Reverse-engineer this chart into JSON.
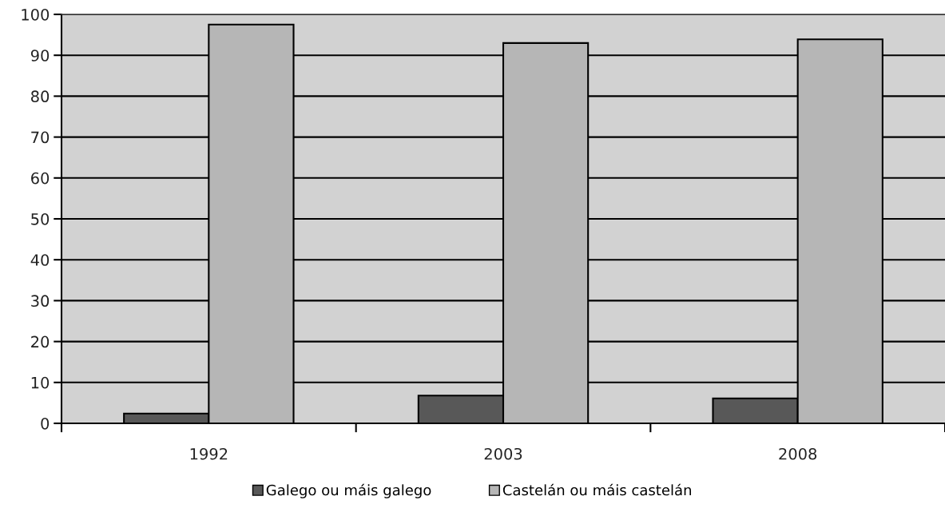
{
  "chart_data": {
    "type": "bar",
    "categories": [
      "1992",
      "2003",
      "2008"
    ],
    "series": [
      {
        "name": "Galego ou máis galego",
        "color": "#585858",
        "values": [
          2.4,
          6.8,
          6.1
        ]
      },
      {
        "name": "Castelán ou máis castelán",
        "color": "#b6b6b6",
        "values": [
          97.5,
          93.0,
          93.9
        ]
      }
    ],
    "ylim": [
      0,
      100
    ],
    "yticks": [
      0,
      10,
      20,
      30,
      40,
      50,
      60,
      70,
      80,
      90,
      100
    ],
    "grid": "y",
    "legend": "bottom"
  }
}
